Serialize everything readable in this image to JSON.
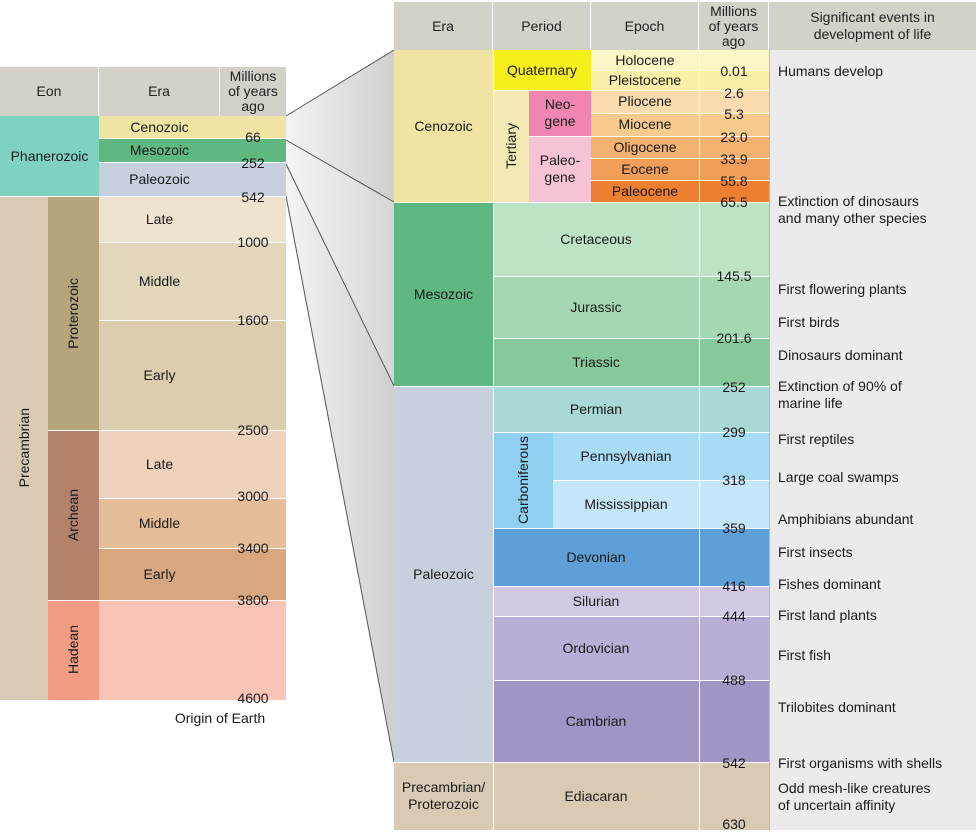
{
  "left": {
    "headers": {
      "eon": "Eon",
      "era": "Era",
      "mya": "Millions\nof years\nago"
    },
    "eons": {
      "phanerozoic": "Phanerozoic",
      "precambrian": "Precambrian"
    },
    "eras_phan": {
      "cenozoic": "Cenozoic",
      "mesozoic": "Mesozoic",
      "paleozoic": "Paleozoic"
    },
    "pre_eras": {
      "proterozoic": "Proterozoic",
      "archean": "Archean",
      "hadean": "Hadean"
    },
    "subs": {
      "late": "Late",
      "middle": "Middle",
      "early": "Early"
    },
    "numbers": [
      "66",
      "252",
      "542",
      "1000",
      "1600",
      "2500",
      "3000",
      "3400",
      "3800",
      "4600"
    ],
    "origin": "Origin of Earth"
  },
  "right": {
    "headers": {
      "era": "Era",
      "period": "Period",
      "epoch": "Epoch",
      "mya": "Millions\nof years\nago",
      "events": "Significant events in\ndevelopment of life"
    },
    "eras": {
      "cenozoic": "Cenozoic",
      "mesozoic": "Mesozoic",
      "paleozoic": "Paleozoic",
      "precambrian": "Precambrian/\nProterozoic"
    },
    "periods": {
      "quaternary": "Quaternary",
      "tertiary": "Tertiary",
      "neogene": "Neo-\ngene",
      "paleogene": "Paleo-\ngene",
      "cretaceous": "Cretaceous",
      "jurassic": "Jurassic",
      "triassic": "Triassic",
      "permian": "Permian",
      "carboniferous": "Carboniferous",
      "pennsylvanian": "Pennsylvanian",
      "mississippian": "Mississippian",
      "devonian": "Devonian",
      "silurian": "Silurian",
      "ordovician": "Ordovician",
      "cambrian": "Cambrian",
      "ediacaran": "Ediacaran"
    },
    "epochs": {
      "holocene": "Holocene",
      "pleistocene": "Pleistocene",
      "pliocene": "Pliocene",
      "miocene": "Miocene",
      "oligocene": "Oligocene",
      "eocene": "Eocene",
      "paleocene": "Paleocene"
    },
    "numbers": [
      "0.01",
      "2.6",
      "5.3",
      "23.0",
      "33.9",
      "55.8",
      "65.5",
      "145.5",
      "201.6",
      "252",
      "299",
      "318",
      "359",
      "416",
      "444",
      "488",
      "542",
      "630"
    ],
    "events": [
      "Humans develop",
      "Extinction of dinosaurs\nand many other species",
      "First flowering plants",
      "First birds",
      "Dinosaurs dominant",
      "Extinction of 90% of\nmarine life",
      "First reptiles",
      "Large coal swamps",
      "Amphibians abundant",
      "First insects",
      "Fishes dominant",
      "First land plants",
      "First fish",
      "Trilobites dominant",
      "First organisms with shells",
      "Odd mesh-like creatures\nof uncertain affinity"
    ]
  }
}
